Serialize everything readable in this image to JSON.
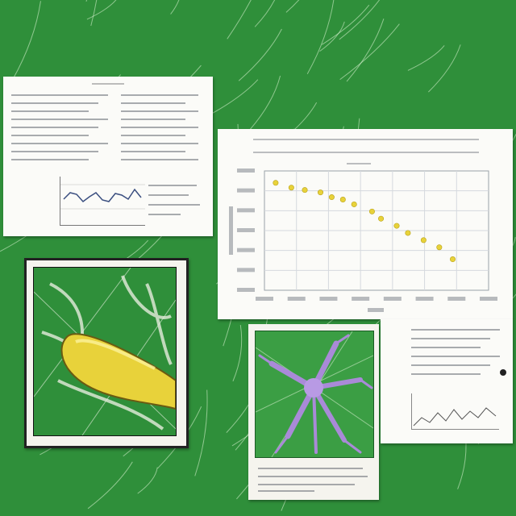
{
  "scene": {
    "background_color": "#2f8f3a",
    "leaf_vein_color": "#dff5d5",
    "accent_yellow": "#e8d23a",
    "accent_purple": "#a98ad8"
  },
  "chart_data": {
    "type": "scatter",
    "title": "",
    "xlabel": "",
    "ylabel": "",
    "xlim": [
      0,
      10
    ],
    "ylim": [
      0,
      10
    ],
    "grid": true,
    "series": [
      {
        "x": [
          0.5,
          1.2,
          1.8,
          2.5,
          3.0,
          3.5,
          4.0,
          4.8,
          5.2,
          5.9,
          6.4,
          7.1,
          7.8,
          8.4
        ],
        "y": [
          9.0,
          8.6,
          8.4,
          8.2,
          7.8,
          7.6,
          7.2,
          6.6,
          6.0,
          5.4,
          4.8,
          4.2,
          3.6,
          2.6
        ]
      }
    ]
  }
}
